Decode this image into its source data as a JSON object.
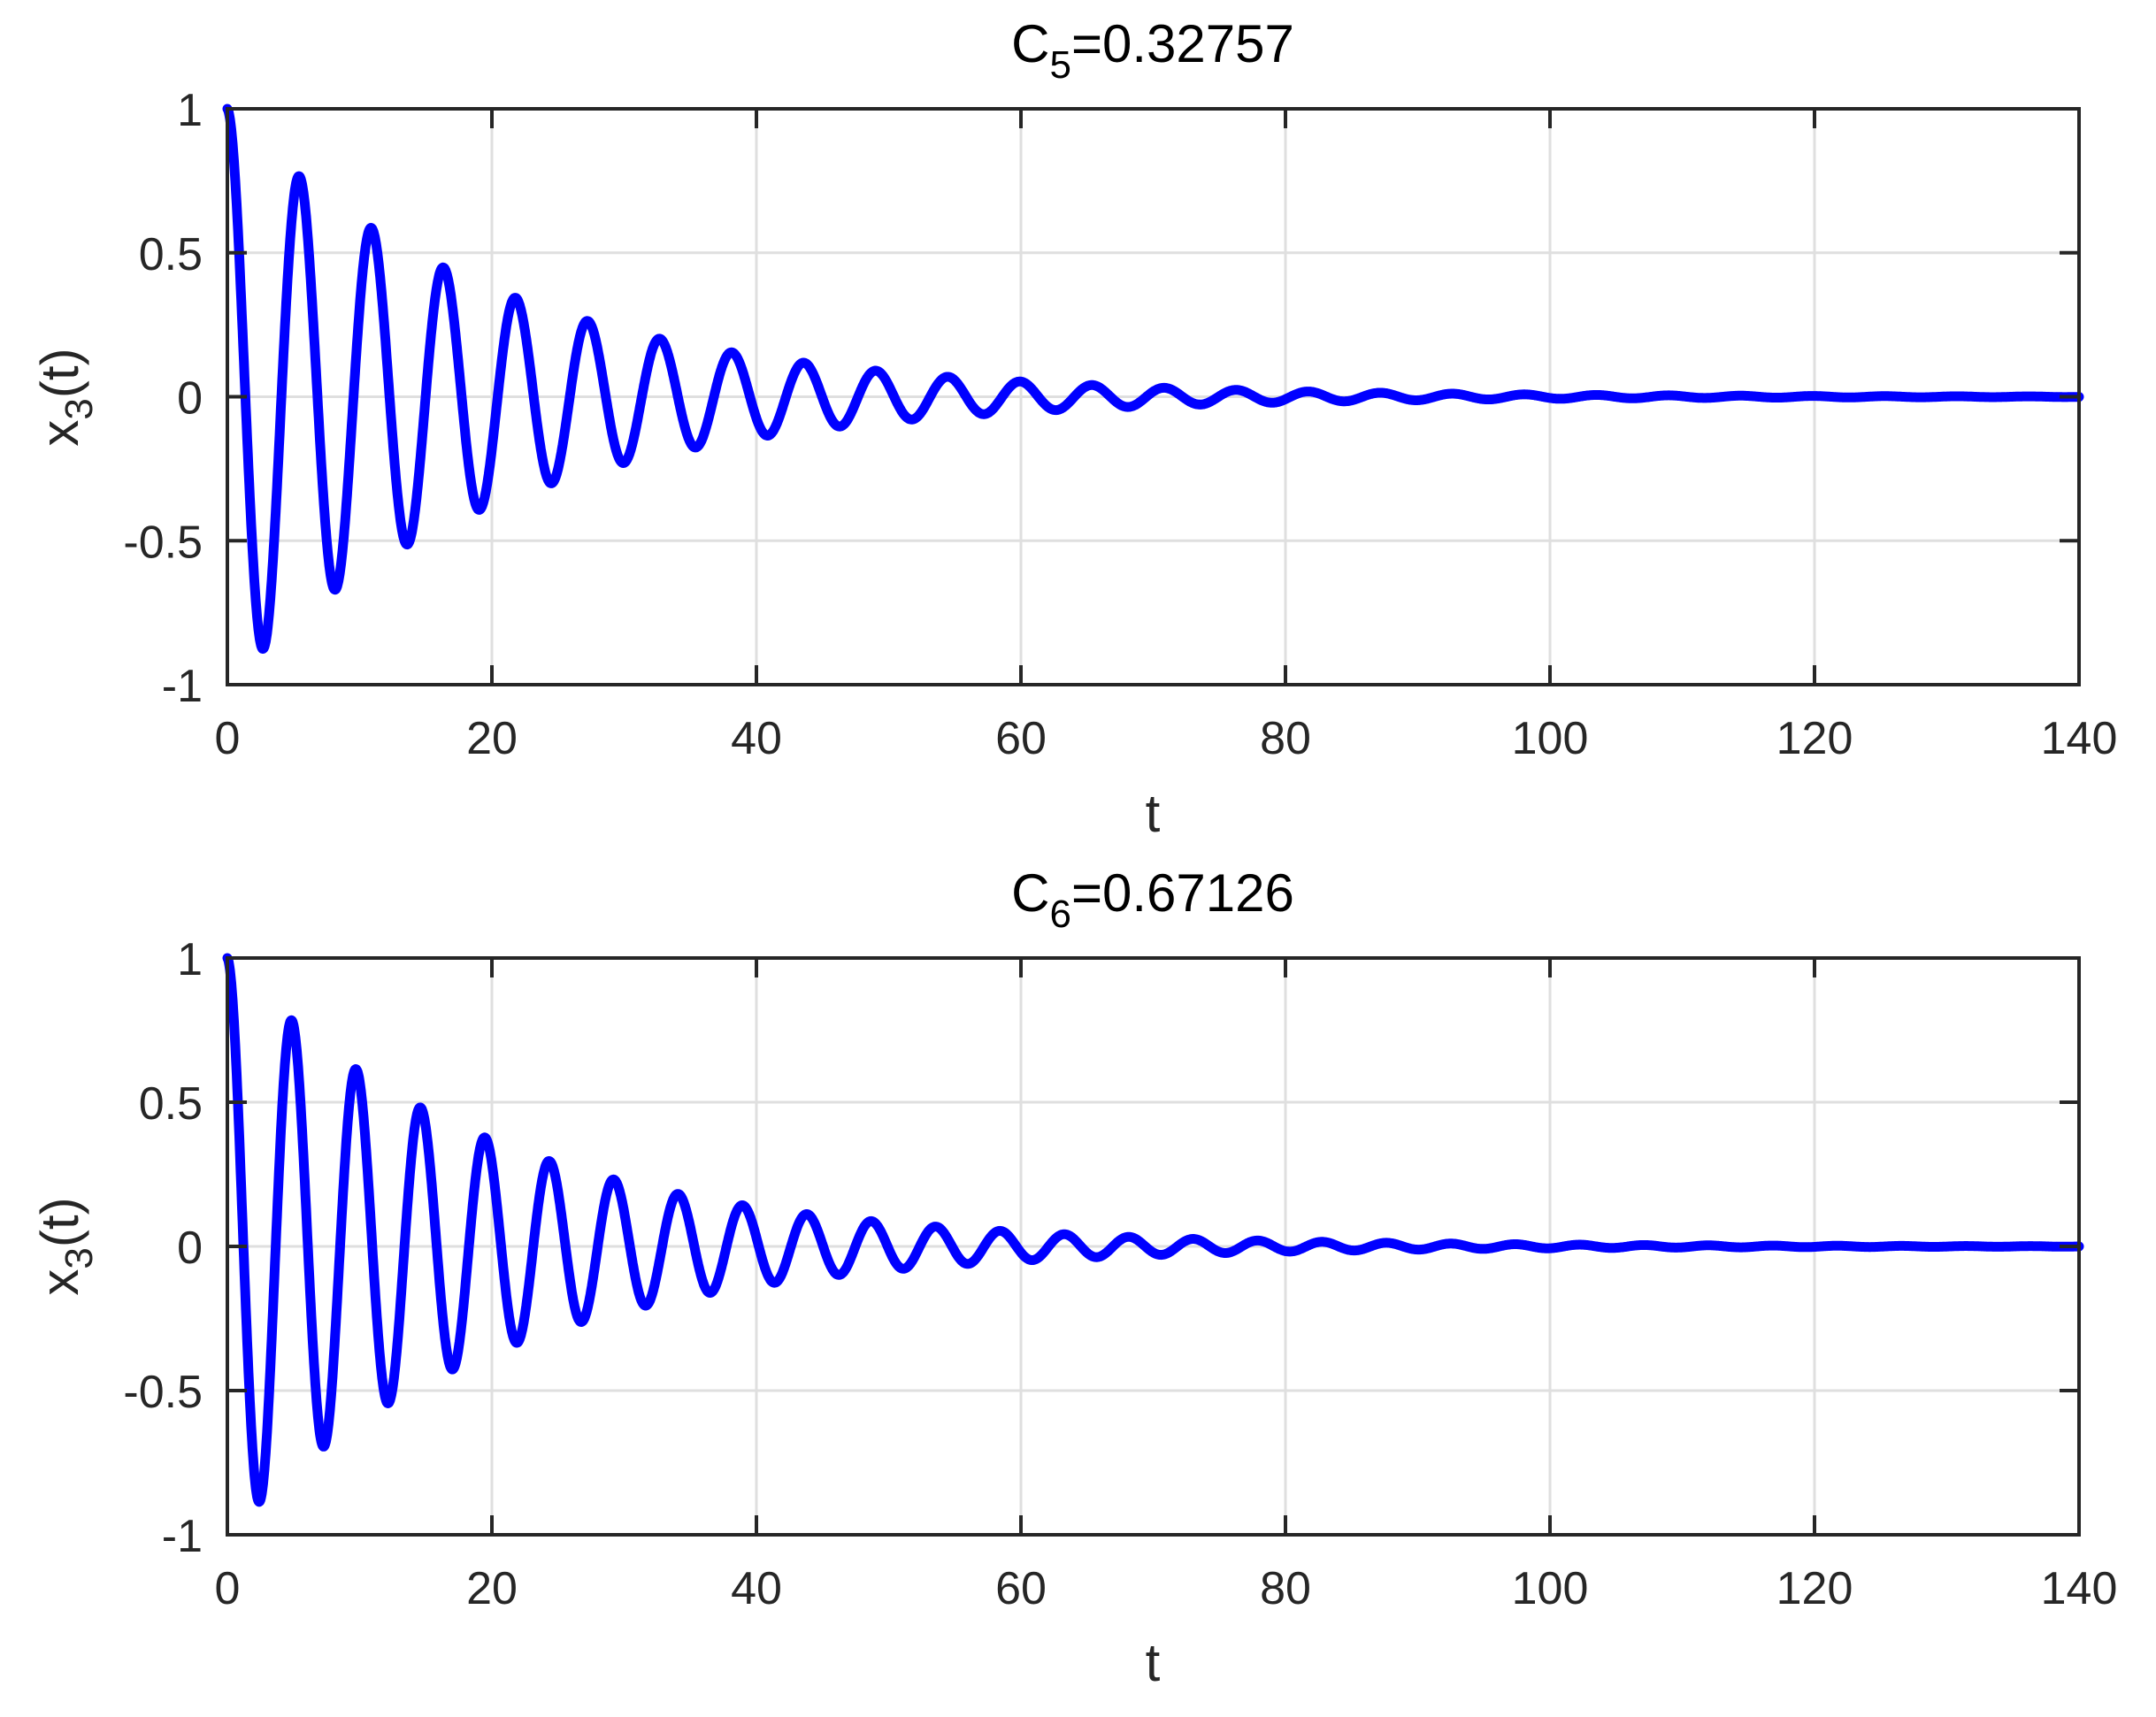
{
  "figure": {
    "background": "#ffffff",
    "axis_color": "#262626",
    "grid_color": "#dfdfdf",
    "line_color": "#0000ff"
  },
  "chart_data": [
    {
      "type": "line",
      "title": "C5=0.32757",
      "title_parts": {
        "base": "C",
        "subscript": "5",
        "rest": "=0.32757"
      },
      "xlabel": "t",
      "ylabel": "x3(t)",
      "ylabel_parts": {
        "base": "x",
        "subscript": "3",
        "rest": "(t)"
      },
      "xlim": [
        0,
        140
      ],
      "ylim": [
        -1,
        1
      ],
      "xticks": [
        0,
        20,
        40,
        60,
        80,
        100,
        120,
        140
      ],
      "yticks": [
        -1,
        -0.5,
        0,
        0.5,
        1
      ],
      "xtick_labels": [
        "0",
        "20",
        "40",
        "60",
        "80",
        "100",
        "120",
        "140"
      ],
      "ytick_labels": [
        "-1",
        "-0.5",
        "0",
        "0.5",
        "1"
      ],
      "grid": true,
      "legend": null,
      "series": [
        {
          "name": "x3(t)",
          "color": "#0000ff",
          "model": {
            "form": "A*exp(-decay*t)*cos(2*pi*t/period)",
            "amplitude": 1.0,
            "decay": 0.049,
            "period": 5.45
          },
          "extrema": [
            {
              "t": 0.0,
              "x": 1.0
            },
            {
              "t": 2.7,
              "x": -0.87
            },
            {
              "t": 5.45,
              "x": 0.765
            },
            {
              "t": 8.1,
              "x": -0.665
            },
            {
              "t": 10.9,
              "x": 0.583
            },
            {
              "t": 13.65,
              "x": -0.51
            },
            {
              "t": 16.3,
              "x": 0.44
            },
            {
              "t": 19.1,
              "x": -0.393
            },
            {
              "t": 21.8,
              "x": 0.338
            },
            {
              "t": 24.5,
              "x": -0.296
            },
            {
              "t": 27.3,
              "x": 0.254
            },
            {
              "t": 30.0,
              "x": -0.225
            },
            {
              "t": 32.8,
              "x": 0.195
            },
            {
              "t": 35.5,
              "x": -0.18
            },
            {
              "t": 38.2,
              "x": 0.15
            },
            {
              "t": 60.0,
              "x": 0.05
            },
            {
              "t": 80.0,
              "x": -0.02
            },
            {
              "t": 140.0,
              "x": 0.0
            }
          ]
        }
      ]
    },
    {
      "type": "line",
      "title": "C6=0.67126",
      "title_parts": {
        "base": "C",
        "subscript": "6",
        "rest": "=0.67126"
      },
      "xlabel": "t",
      "ylabel": "x3(t)",
      "ylabel_parts": {
        "base": "x",
        "subscript": "3",
        "rest": "(t)"
      },
      "xlim": [
        0,
        140
      ],
      "ylim": [
        -1,
        1
      ],
      "xticks": [
        0,
        20,
        40,
        60,
        80,
        100,
        120,
        140
      ],
      "yticks": [
        -1,
        -0.5,
        0,
        0.5,
        1
      ],
      "xtick_labels": [
        "0",
        "20",
        "40",
        "60",
        "80",
        "100",
        "120",
        "140"
      ],
      "ytick_labels": [
        "-1",
        "-0.5",
        "0",
        "0.5",
        "1"
      ],
      "grid": true,
      "legend": null,
      "series": [
        {
          "name": "x3(t)",
          "color": "#0000ff",
          "model": {
            "form": "A*exp(-decay*t)*cos(2*pi*t/period)",
            "amplitude": 1.0,
            "decay": 0.05,
            "period": 4.87
          },
          "extrema": [
            {
              "t": 0.0,
              "x": 1.0
            },
            {
              "t": 2.43,
              "x": -0.89
            },
            {
              "t": 4.87,
              "x": 0.79
            },
            {
              "t": 7.3,
              "x": -0.7
            },
            {
              "t": 9.73,
              "x": 0.62
            },
            {
              "t": 12.1,
              "x": -0.55
            },
            {
              "t": 14.6,
              "x": 0.486
            },
            {
              "t": 17.0,
              "x": -0.43
            },
            {
              "t": 19.5,
              "x": 0.383
            },
            {
              "t": 21.9,
              "x": -0.34
            },
            {
              "t": 24.3,
              "x": 0.3
            },
            {
              "t": 26.8,
              "x": -0.27
            },
            {
              "t": 29.2,
              "x": 0.234
            },
            {
              "t": 31.65,
              "x": -0.21
            },
            {
              "t": 34.1,
              "x": 0.182
            },
            {
              "t": 36.5,
              "x": -0.167
            },
            {
              "t": 38.9,
              "x": 0.144
            },
            {
              "t": 58.4,
              "x": 0.05
            },
            {
              "t": 80.0,
              "x": -0.02
            },
            {
              "t": 140.0,
              "x": 0.0
            }
          ]
        }
      ]
    }
  ]
}
